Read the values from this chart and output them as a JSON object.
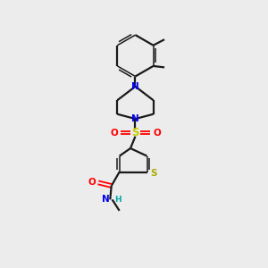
{
  "background_color": "#ececec",
  "bond_color": "#1a1a1a",
  "atom_colors": {
    "N": "#0000ee",
    "S_sulfonyl": "#cccc00",
    "O": "#ff0000",
    "S_thio": "#aaaa00",
    "H": "#00aaaa",
    "C": "#1a1a1a"
  },
  "figsize": [
    3.0,
    3.0
  ],
  "dpi": 100
}
